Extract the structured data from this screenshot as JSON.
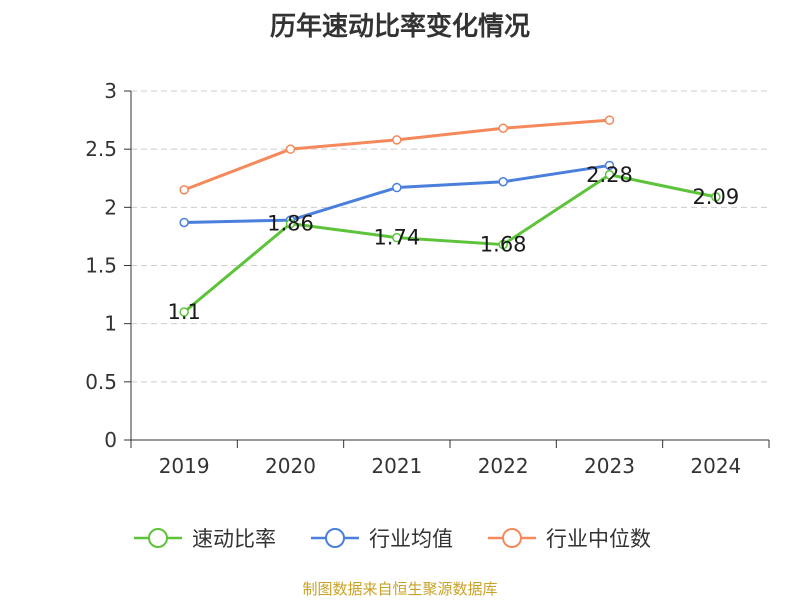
{
  "chart_data": {
    "type": "line",
    "title": "历年速动比率变化情况",
    "categories": [
      "2019",
      "2020",
      "2021",
      "2022",
      "2023",
      "2024"
    ],
    "ylim": [
      0,
      3
    ],
    "yticks": [
      "0",
      "0.5",
      "1",
      "1.5",
      "2",
      "2.5",
      "3"
    ],
    "grid": true,
    "legend_position": "bottom",
    "series": [
      {
        "name": "速动比率",
        "color": "#5cc33a",
        "values": [
          1.1,
          1.86,
          1.74,
          1.68,
          2.28,
          2.09
        ],
        "labels": [
          "1.1",
          "1.86",
          "1.74",
          "1.68",
          "2.28",
          "2.09"
        ]
      },
      {
        "name": "行业均值",
        "color": "#4a7fdc",
        "values": [
          1.87,
          1.89,
          2.17,
          2.22,
          2.36,
          null
        ]
      },
      {
        "name": "行业中位数",
        "color": "#f5895b",
        "values": [
          2.15,
          2.5,
          2.58,
          2.68,
          2.75,
          null
        ]
      }
    ]
  },
  "footer": {
    "source": "制图数据来自恒生聚源数据库"
  }
}
